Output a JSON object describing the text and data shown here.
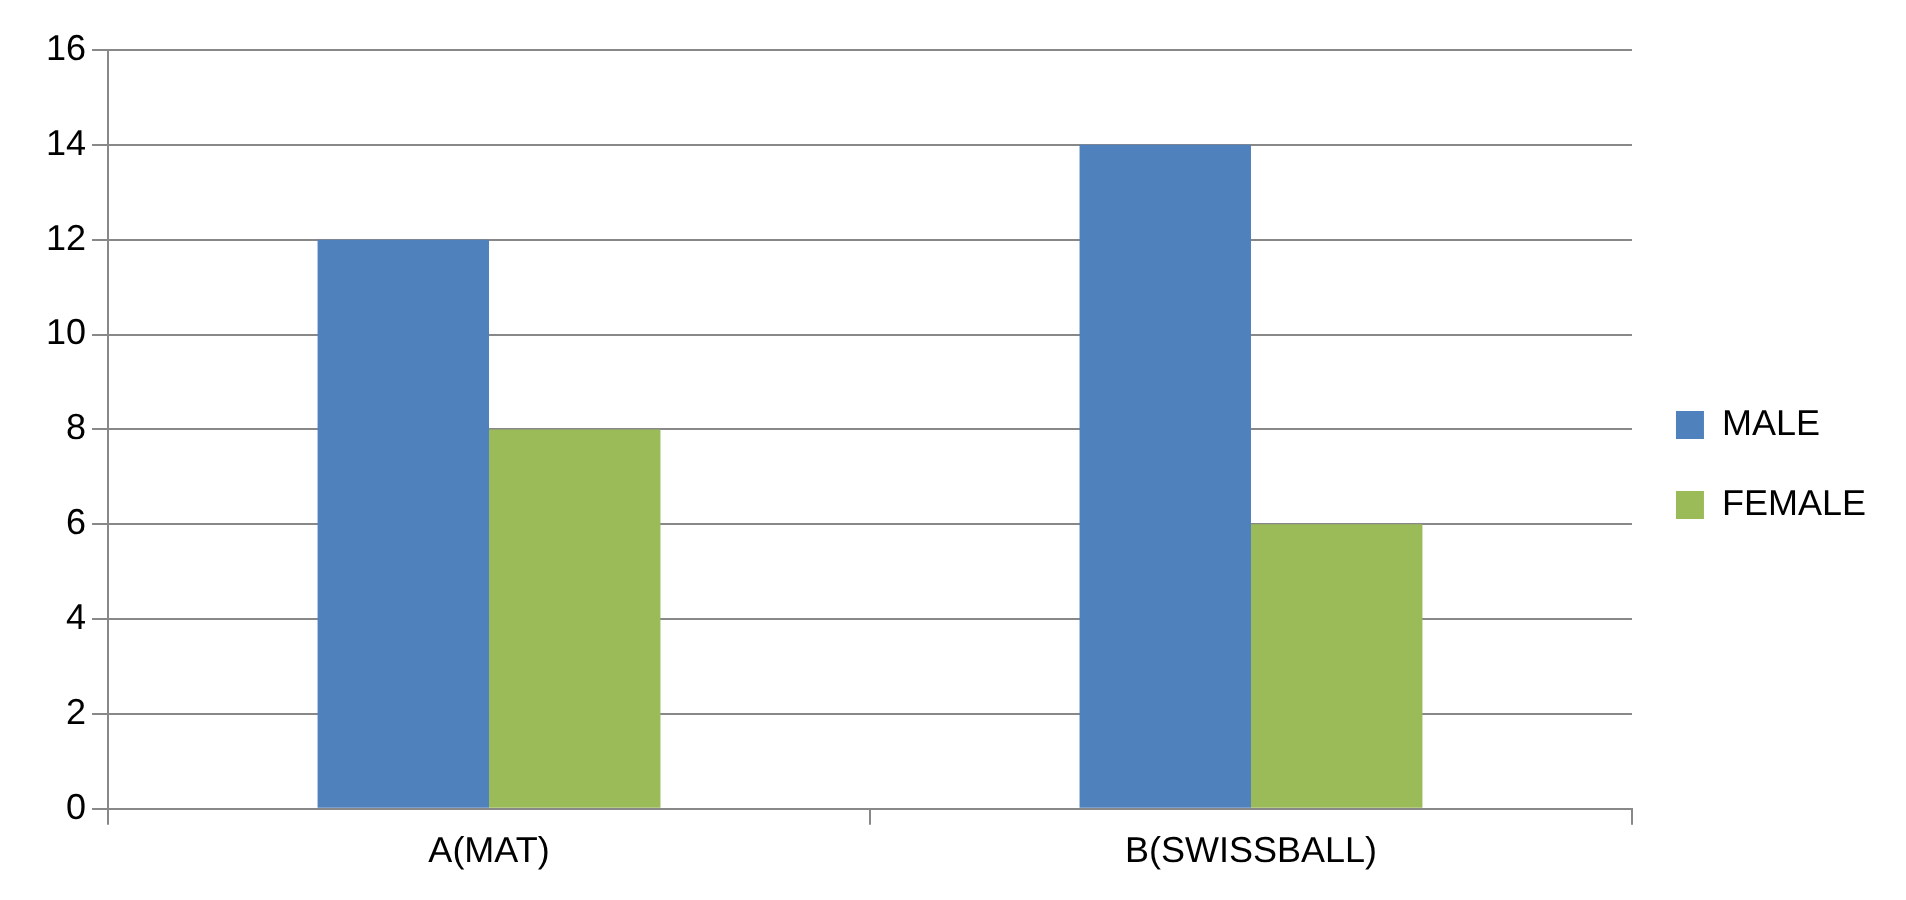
{
  "chart_data": {
    "type": "bar",
    "categories": [
      "A(MAT)",
      "B(SWISSBALL)"
    ],
    "series": [
      {
        "name": "MALE",
        "color": "#4f81bd",
        "values": [
          12,
          14
        ]
      },
      {
        "name": "FEMALE",
        "color": "#9bbb59",
        "values": [
          8,
          6
        ]
      }
    ],
    "ylim": [
      0,
      16
    ],
    "yticks": [
      0,
      2,
      4,
      6,
      8,
      10,
      12,
      14,
      16
    ],
    "grid": "y",
    "legend": "right"
  }
}
